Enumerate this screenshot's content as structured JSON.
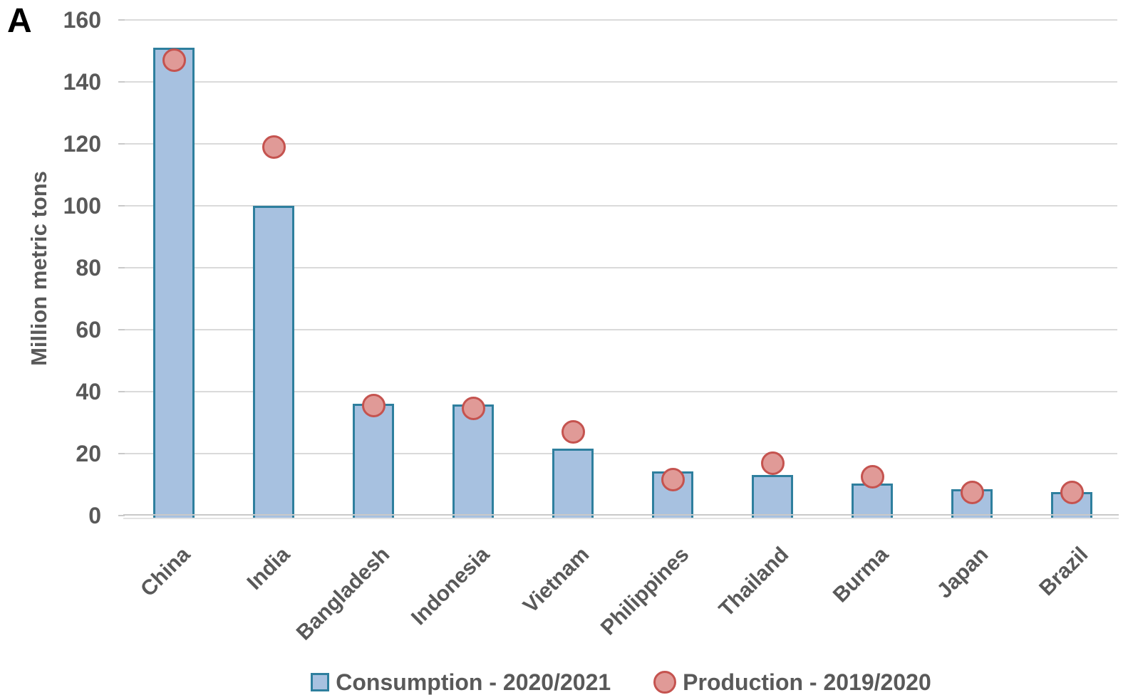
{
  "figure": {
    "panel_label": "A",
    "background": "#ffffff"
  },
  "chart_data": {
    "type": "bar",
    "title": "",
    "xlabel": "",
    "ylabel": "Million metric tons",
    "ylim": [
      0,
      160
    ],
    "yticks": [
      0,
      20,
      40,
      60,
      80,
      100,
      120,
      140,
      160
    ],
    "grid": true,
    "legend_position": "bottom",
    "categories": [
      "China",
      "India",
      "Bangladesh",
      "Indonesia",
      "Vietnam",
      "Philippines",
      "Thailand",
      "Burma",
      "Japan",
      "Brazil"
    ],
    "series": [
      {
        "name": "Consumption - 2020/2021",
        "type": "bar",
        "values": [
          151,
          100,
          36,
          35.8,
          21.5,
          14.3,
          13,
          10.4,
          8.4,
          7.7
        ],
        "fill": "#a7c1e0",
        "border": "#2e7f9e"
      },
      {
        "name": "Production - 2019/2020",
        "type": "scatter",
        "values": [
          147,
          119,
          35.5,
          34.5,
          27,
          11.5,
          17,
          12.5,
          7.5,
          7.4
        ],
        "fill": "#e09a97",
        "border": "#c5534f"
      }
    ],
    "colors": {
      "gridline": "#dadada",
      "axis_line": "#c9c9c9",
      "tick_text": "#595959",
      "axis_title_text": "#595959",
      "category_text": "#595959",
      "legend_text": "#595959",
      "panel_label_text": "#000000"
    }
  }
}
